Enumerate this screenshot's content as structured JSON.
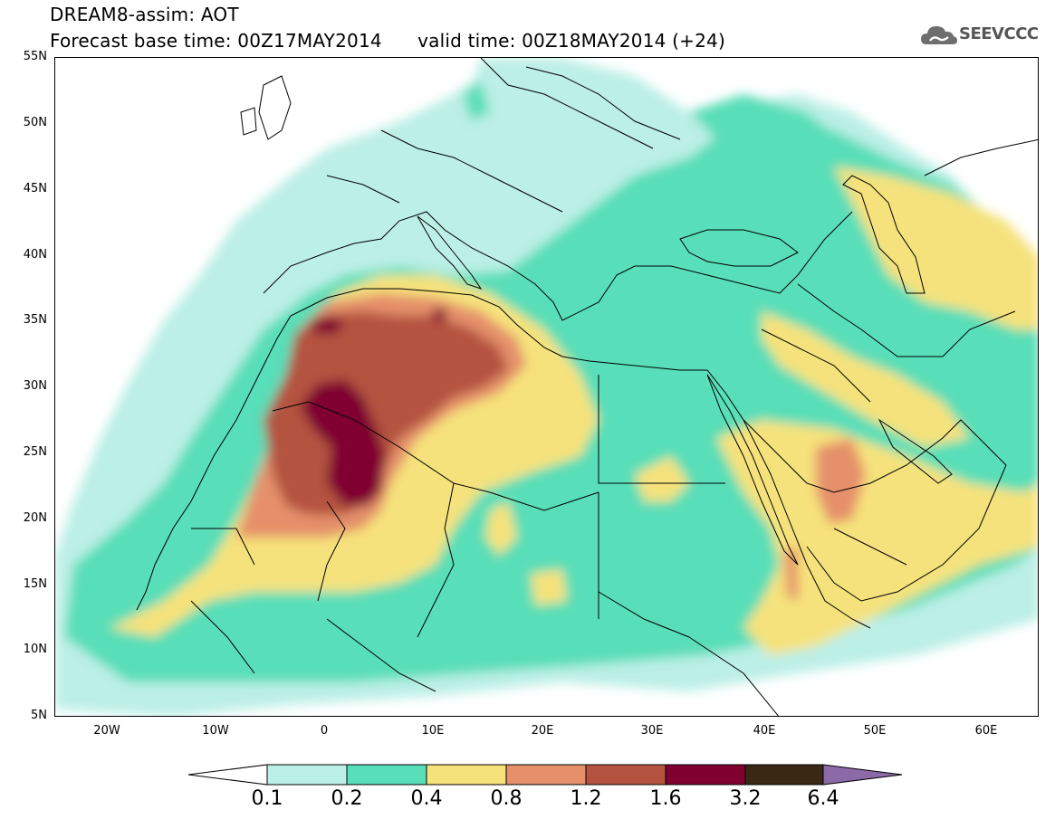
{
  "header": {
    "title": "DREAM8-assim: AOT",
    "subtitle": "Forecast base time: 00Z17MAY2014      valid time: 00Z18MAY2014 (+24)",
    "logo_text": "SEEVCCC"
  },
  "map": {
    "projection": "lat-lon",
    "lon_range": [
      -25,
      65
    ],
    "lat_range": [
      5,
      55
    ],
    "lat_ticks": [
      "55N",
      "50N",
      "45N",
      "40N",
      "35N",
      "30N",
      "25N",
      "20N",
      "15N",
      "10N",
      "5N"
    ],
    "lon_ticks": [
      "20W",
      "10W",
      "0",
      "10E",
      "20E",
      "30E",
      "40E",
      "50E",
      "60E"
    ]
  },
  "legend": {
    "levels": [
      "0.1",
      "0.2",
      "0.4",
      "0.8",
      "1.2",
      "1.6",
      "3.2",
      "6.4"
    ],
    "colors": [
      "#ffffff",
      "#bcefe6",
      "#58deb8",
      "#f6e27b",
      "#e5906a",
      "#b4533f",
      "#800030",
      "#3a2815",
      "#8c6aa8"
    ]
  }
}
